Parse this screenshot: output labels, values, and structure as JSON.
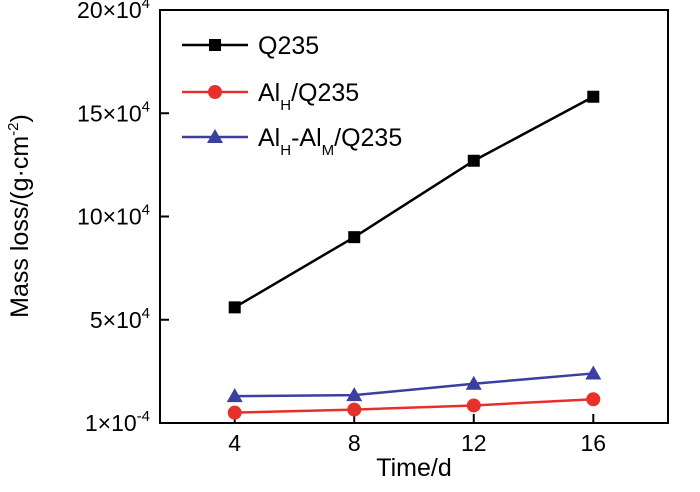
{
  "chart_data": {
    "type": "line",
    "title": "",
    "xlabel": "Time/d",
    "ylabel_text": "Mass loss/(g·cm",
    "ylabel_sup": "-2",
    "ylabel_close": ")",
    "x": [
      4,
      8,
      12,
      16
    ],
    "xlim": [
      1.5,
      18.5
    ],
    "ylim": [
      0,
      20
    ],
    "y_unit": "x 10^4 (axis labels as printed)",
    "x_ticks": [
      4,
      8,
      12,
      16
    ],
    "x_tick_labels": [
      "4",
      "8",
      "12",
      "16"
    ],
    "y_ticks": [
      {
        "value": 0,
        "mantissa": "1",
        "exp": "-4"
      },
      {
        "value": 5,
        "mantissa": "5",
        "exp": "4"
      },
      {
        "value": 10,
        "mantissa": "10",
        "exp": "4"
      },
      {
        "value": 15,
        "mantissa": "15",
        "exp": "4"
      },
      {
        "value": 20,
        "mantissa": "20",
        "exp": "4"
      }
    ],
    "legend_position": "top-left",
    "series": [
      {
        "name": "Q235",
        "legend_parts": [
          {
            "t": "Q235",
            "s": ""
          }
        ],
        "marker": "square",
        "color": "#000000",
        "values": [
          5.6,
          9.0,
          12.7,
          15.8
        ]
      },
      {
        "name": "AlH/Q235",
        "legend_parts": [
          {
            "t": "Al",
            "s": ""
          },
          {
            "t": "H",
            "s": "sub"
          },
          {
            "t": "/Q235",
            "s": ""
          }
        ],
        "marker": "circle",
        "color": "#e8302a",
        "values": [
          0.5,
          0.65,
          0.85,
          1.15
        ]
      },
      {
        "name": "AlH-AlM/Q235",
        "legend_parts": [
          {
            "t": "Al",
            "s": ""
          },
          {
            "t": "H",
            "s": "sub"
          },
          {
            "t": "-Al",
            "s": ""
          },
          {
            "t": "M",
            "s": "sub"
          },
          {
            "t": "/Q235",
            "s": ""
          }
        ],
        "marker": "triangle",
        "color": "#3a3fa0",
        "values": [
          1.3,
          1.35,
          1.9,
          2.4
        ]
      }
    ]
  }
}
